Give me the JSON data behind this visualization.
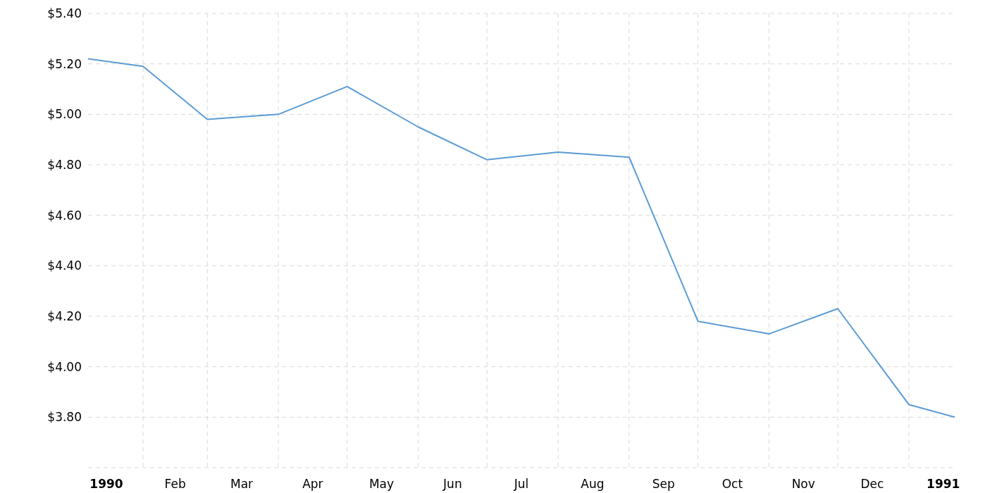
{
  "chart_data": {
    "type": "line",
    "x": [
      "1990-01-08",
      "1990-02-01",
      "1990-03-01",
      "1990-04-01",
      "1990-05-01",
      "1990-06-01",
      "1990-07-01",
      "1990-08-01",
      "1990-09-01",
      "1990-10-01",
      "1990-11-01",
      "1990-12-01",
      "1991-01-01",
      "1991-01-21"
    ],
    "values": [
      5.22,
      5.19,
      4.98,
      5.0,
      5.11,
      4.95,
      4.82,
      4.85,
      4.83,
      4.18,
      4.13,
      4.23,
      3.85,
      3.8
    ],
    "color": "#5b9bd5",
    "marker": "none",
    "grid": true,
    "xlim": [
      "1990-01-08",
      "1991-01-21"
    ],
    "xticks": [
      {
        "value": "1990-01-16",
        "label": "1990"
      },
      {
        "value": "1990-02-01",
        "label": null
      },
      {
        "value": "1990-02-15",
        "label": "Feb"
      },
      {
        "value": "1990-03-01",
        "label": null
      },
      {
        "value": "1990-03-16",
        "label": "Mar"
      },
      {
        "value": "1990-04-01",
        "label": null
      },
      {
        "value": "1990-04-16",
        "label": "Apr"
      },
      {
        "value": "1990-05-01",
        "label": null
      },
      {
        "value": "1990-05-16",
        "label": "May"
      },
      {
        "value": "1990-06-01",
        "label": null
      },
      {
        "value": "1990-06-16",
        "label": "Jun"
      },
      {
        "value": "1990-07-01",
        "label": null
      },
      {
        "value": "1990-07-16",
        "label": "Jul"
      },
      {
        "value": "1990-08-01",
        "label": null
      },
      {
        "value": "1990-08-16",
        "label": "Aug"
      },
      {
        "value": "1990-09-01",
        "label": null
      },
      {
        "value": "1990-09-16",
        "label": "Sep"
      },
      {
        "value": "1990-10-01",
        "label": null
      },
      {
        "value": "1990-10-16",
        "label": "Oct"
      },
      {
        "value": "1990-11-01",
        "label": null
      },
      {
        "value": "1990-11-16",
        "label": "Nov"
      },
      {
        "value": "1990-12-01",
        "label": null
      },
      {
        "value": "1990-12-16",
        "label": "Dec"
      },
      {
        "value": "1991-01-01",
        "label": null
      },
      {
        "value": "1991-01-16",
        "label": "1991"
      }
    ],
    "ylim": [
      3.6,
      5.4
    ],
    "yticks": [
      {
        "value": 3.6,
        "label": null
      },
      {
        "value": 3.8,
        "label": "$3.80"
      },
      {
        "value": 4.0,
        "label": "$4.00"
      },
      {
        "value": 4.2,
        "label": "$4.20"
      },
      {
        "value": 4.4,
        "label": "$4.40"
      },
      {
        "value": 4.6,
        "label": "$4.60"
      },
      {
        "value": 4.8,
        "label": "$4.80"
      },
      {
        "value": 5.0,
        "label": "$5.00"
      },
      {
        "value": 5.2,
        "label": "$5.20"
      },
      {
        "value": 5.4,
        "label": "$5.40"
      }
    ]
  }
}
